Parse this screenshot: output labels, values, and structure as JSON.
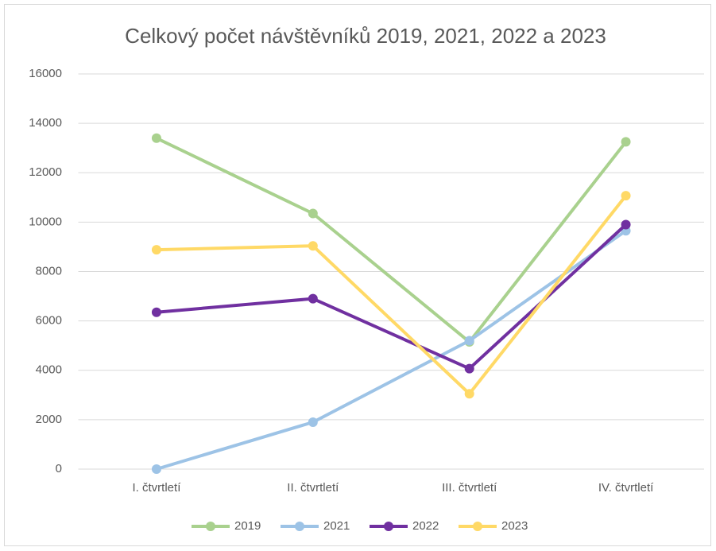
{
  "chart_data": {
    "type": "line",
    "title": "Celkový počet návštěvníků 2019, 2021, 2022 a 2023",
    "categories": [
      "I. čtvrtletí",
      "II. čtvrtletí",
      "III. čtvrtletí",
      "IV. čtvrtletí"
    ],
    "series": [
      {
        "name": "2019",
        "color": "#a9d18e",
        "values": [
          13400,
          10350,
          5150,
          13250
        ]
      },
      {
        "name": "2021",
        "color": "#9dc3e6",
        "values": [
          0,
          1900,
          5200,
          9650
        ]
      },
      {
        "name": "2022",
        "color": "#7030a0",
        "values": [
          6350,
          6900,
          4070,
          9900
        ]
      },
      {
        "name": "2023",
        "color": "#ffd966",
        "values": [
          8880,
          9040,
          3050,
          11070
        ]
      }
    ],
    "ylim": [
      0,
      16000
    ],
    "yticks": [
      0,
      2000,
      4000,
      6000,
      8000,
      10000,
      12000,
      14000,
      16000
    ],
    "grid": true,
    "legend": "bottom"
  }
}
